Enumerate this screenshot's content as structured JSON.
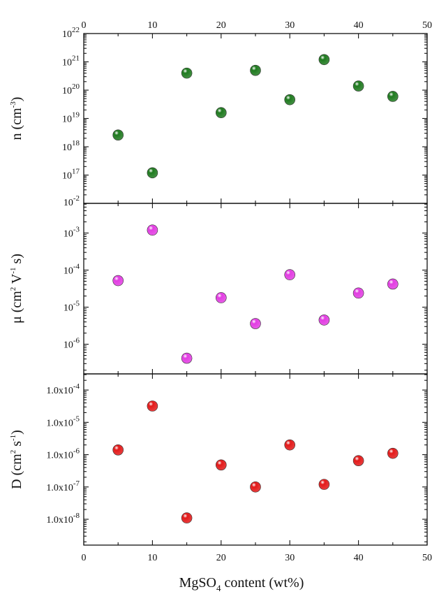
{
  "chart_data": [
    {
      "type": "scatter",
      "panel": "n",
      "ylabel": {
        "base": "n (cm",
        "sup": "-3",
        "tail": ")"
      },
      "yscale": "log",
      "xlim": [
        0,
        50
      ],
      "ylim_exp": [
        16,
        22
      ],
      "yticks": [
        {
          "exp": 17,
          "mant": "10",
          "sup": "17"
        },
        {
          "exp": 18,
          "mant": "10",
          "sup": "18"
        },
        {
          "exp": 19,
          "mant": "10",
          "sup": "19"
        },
        {
          "exp": 20,
          "mant": "10",
          "sup": "20"
        },
        {
          "exp": 21,
          "mant": "10",
          "sup": "21"
        },
        {
          "exp": 22,
          "mant": "10",
          "sup": "22"
        }
      ],
      "bottom_label": {
        "mant": "10",
        "sup": "-2"
      },
      "color": "#1f7a1f",
      "x": [
        5,
        10,
        15,
        20,
        25,
        30,
        35,
        40,
        45
      ],
      "y": [
        2.6e+18,
        1.2e+17,
        4e+20,
        1.6e+19,
        5e+20,
        4.6e+19,
        1.2e+21,
        1.4e+20,
        6e+19
      ]
    },
    {
      "type": "scatter",
      "panel": "mu",
      "ylabel": {
        "base": "μ (cm",
        "sup": "2",
        "mid": " V",
        "sup2": "-1",
        "tail": " s)"
      },
      "yscale": "log",
      "xlim": [
        0,
        50
      ],
      "ylim_exp": [
        -6.8,
        -2.2
      ],
      "yticks": [
        {
          "exp": -3,
          "mant": "10",
          "sup": "-3"
        },
        {
          "exp": -4,
          "mant": "10",
          "sup": "-4"
        },
        {
          "exp": -5,
          "mant": "10",
          "sup": "-5"
        },
        {
          "exp": -6,
          "mant": "10",
          "sup": "-6"
        }
      ],
      "color": "#e23de2",
      "x": [
        5,
        10,
        15,
        20,
        25,
        30,
        35,
        40,
        45
      ],
      "y": [
        5.2e-05,
        0.0012,
        4.2e-07,
        1.8e-05,
        3.6e-06,
        7.5e-05,
        4.5e-06,
        2.4e-05,
        4.2e-05
      ]
    },
    {
      "type": "scatter",
      "panel": "D",
      "ylabel": {
        "base": "D (cm",
        "sup": "2",
        "mid": " s",
        "sup2": "-1",
        "tail": ")"
      },
      "yscale": "log",
      "xlim": [
        0,
        50
      ],
      "ylim_exp": [
        -8.8,
        -3.5
      ],
      "yticks": [
        {
          "exp": -4,
          "mant": "1.0x10",
          "sup": "-4"
        },
        {
          "exp": -5,
          "mant": "1.0x10",
          "sup": "-5"
        },
        {
          "exp": -6,
          "mant": "1.0x10",
          "sup": "-6"
        },
        {
          "exp": -7,
          "mant": "1.0x10",
          "sup": "-7"
        },
        {
          "exp": -8,
          "mant": "1.0x10",
          "sup": "-8"
        }
      ],
      "color": "#e31a1a",
      "x": [
        5,
        10,
        15,
        20,
        25,
        30,
        35,
        40,
        45
      ],
      "y": [
        1.4e-06,
        3.2e-05,
        1.1e-08,
        4.8e-07,
        1e-07,
        2e-06,
        1.2e-07,
        6.5e-07,
        1.1e-06
      ]
    }
  ],
  "xticks": [
    "0",
    "10",
    "20",
    "30",
    "40",
    "50"
  ],
  "xlabel": {
    "base": "MgSO",
    "sub": "4",
    "tail": " content (wt%)"
  }
}
